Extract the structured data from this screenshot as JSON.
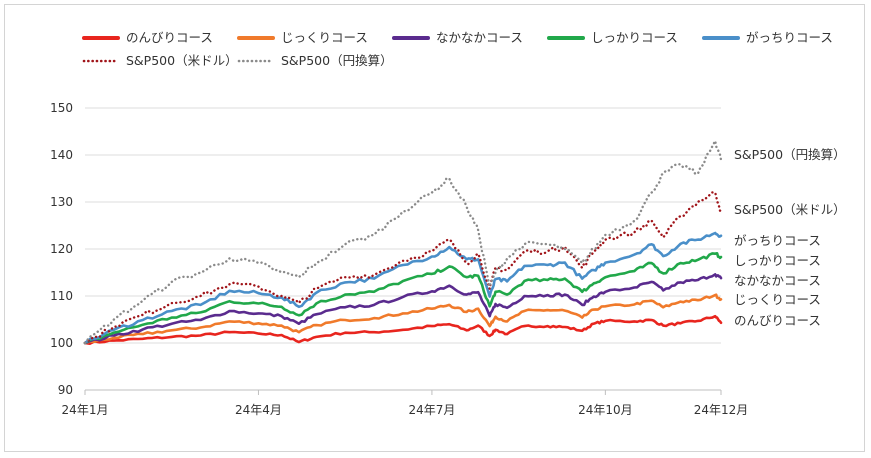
{
  "chart_data": {
    "type": "line",
    "title": "",
    "xlabel": "",
    "ylabel": "",
    "ylim": [
      90,
      150
    ],
    "yticks": [
      90,
      100,
      110,
      120,
      130,
      140,
      150
    ],
    "x_tick_labels": [
      "24年1月",
      "24年4月",
      "24年7月",
      "24年10月",
      "24年12月"
    ],
    "x_tick_months": [
      1,
      4,
      7,
      10,
      12
    ],
    "xlim_months": [
      1,
      12
    ],
    "grid": "horizontal",
    "legend_position": "top",
    "series": [
      {
        "name": "のんびりコース",
        "color": "#e8251e",
        "style": "solid",
        "end_label": "のんびりコース",
        "points": [
          [
            1,
            100
          ],
          [
            1.5,
            100.5
          ],
          [
            2,
            100.9
          ],
          [
            2.5,
            101.3
          ],
          [
            3,
            101.6
          ],
          [
            3.5,
            102.3
          ],
          [
            4,
            102
          ],
          [
            4.4,
            101.7
          ],
          [
            4.7,
            100.2
          ],
          [
            5,
            101.3
          ],
          [
            5.5,
            102.2
          ],
          [
            6,
            102.3
          ],
          [
            6.5,
            102.8
          ],
          [
            7,
            103.6
          ],
          [
            7.3,
            104
          ],
          [
            7.6,
            102.7
          ],
          [
            7.8,
            103.7
          ],
          [
            8.0,
            101.5
          ],
          [
            8.1,
            102.8
          ],
          [
            8.3,
            101.9
          ],
          [
            8.6,
            103.6
          ],
          [
            9,
            103.6
          ],
          [
            9.3,
            103.4
          ],
          [
            9.6,
            102.6
          ],
          [
            9.8,
            104.1
          ],
          [
            10,
            104.7
          ],
          [
            10.5,
            104.6
          ],
          [
            10.8,
            104.9
          ],
          [
            11,
            103.7
          ],
          [
            11.3,
            104.2
          ],
          [
            11.6,
            104.7
          ],
          [
            11.9,
            105.7
          ],
          [
            12,
            104.3
          ]
        ]
      },
      {
        "name": "じっくりコース",
        "color": "#f07a2b",
        "style": "solid",
        "end_label": "じっくりコース",
        "points": [
          [
            1,
            100
          ],
          [
            1.5,
            101.1
          ],
          [
            2,
            101.9
          ],
          [
            2.5,
            102.7
          ],
          [
            3,
            103.3
          ],
          [
            3.5,
            104.6
          ],
          [
            4,
            104.2
          ],
          [
            4.4,
            103.7
          ],
          [
            4.7,
            102.3
          ],
          [
            5,
            103.8
          ],
          [
            5.5,
            104.9
          ],
          [
            6,
            105.3
          ],
          [
            6.5,
            106.3
          ],
          [
            7,
            107.3
          ],
          [
            7.3,
            108.1
          ],
          [
            7.6,
            106.6
          ],
          [
            7.8,
            107.3
          ],
          [
            8.0,
            103.6
          ],
          [
            8.1,
            105.6
          ],
          [
            8.3,
            104.6
          ],
          [
            8.6,
            106.8
          ],
          [
            9,
            107
          ],
          [
            9.3,
            106.9
          ],
          [
            9.6,
            105.4
          ],
          [
            9.8,
            107.1
          ],
          [
            10,
            107.8
          ],
          [
            10.5,
            108.2
          ],
          [
            10.8,
            109
          ],
          [
            11,
            107.6
          ],
          [
            11.3,
            108.8
          ],
          [
            11.6,
            109.1
          ],
          [
            11.9,
            110.2
          ],
          [
            12,
            109.3
          ]
        ]
      },
      {
        "name": "なかなかコース",
        "color": "#5a2b8e",
        "style": "solid",
        "end_label": "なかなかコース",
        "points": [
          [
            1,
            100
          ],
          [
            1.5,
            101.6
          ],
          [
            2,
            102.9
          ],
          [
            2.5,
            104.1
          ],
          [
            3,
            104.9
          ],
          [
            3.5,
            106.8
          ],
          [
            4,
            106.3
          ],
          [
            4.4,
            105.7
          ],
          [
            4.7,
            104.1
          ],
          [
            5,
            106.1
          ],
          [
            5.5,
            107.6
          ],
          [
            6,
            108.1
          ],
          [
            6.5,
            109.8
          ],
          [
            7,
            111
          ],
          [
            7.3,
            112.2
          ],
          [
            7.6,
            110.3
          ],
          [
            7.8,
            110.8
          ],
          [
            8.0,
            105.7
          ],
          [
            8.1,
            108.3
          ],
          [
            8.3,
            107.5
          ],
          [
            8.6,
            110
          ],
          [
            9,
            110.2
          ],
          [
            9.3,
            110.3
          ],
          [
            9.6,
            108.1
          ],
          [
            9.8,
            109.9
          ],
          [
            10,
            110.9
          ],
          [
            10.5,
            111.8
          ],
          [
            10.8,
            113
          ],
          [
            11,
            111.2
          ],
          [
            11.3,
            112.9
          ],
          [
            11.6,
            113.4
          ],
          [
            11.9,
            114.6
          ],
          [
            12,
            113.8
          ]
        ]
      },
      {
        "name": "しっかりコース",
        "color": "#21a84a",
        "style": "solid",
        "end_label": "しっかりコース",
        "points": [
          [
            1,
            100
          ],
          [
            1.5,
            102.2
          ],
          [
            2,
            103.9
          ],
          [
            2.5,
            105.4
          ],
          [
            3,
            106.5
          ],
          [
            3.5,
            108.9
          ],
          [
            4,
            108.4
          ],
          [
            4.4,
            107.7
          ],
          [
            4.7,
            105.9
          ],
          [
            5,
            108.4
          ],
          [
            5.5,
            110.3
          ],
          [
            6,
            110.9
          ],
          [
            6.5,
            113.2
          ],
          [
            7,
            114.7
          ],
          [
            7.3,
            116.3
          ],
          [
            7.6,
            114
          ],
          [
            7.8,
            114.3
          ],
          [
            8.0,
            107.8
          ],
          [
            8.1,
            110.9
          ],
          [
            8.3,
            110.3
          ],
          [
            8.6,
            113.2
          ],
          [
            9,
            113.4
          ],
          [
            9.3,
            113.7
          ],
          [
            9.6,
            110.9
          ],
          [
            9.8,
            112.7
          ],
          [
            10,
            114
          ],
          [
            10.5,
            115.3
          ],
          [
            10.8,
            117
          ],
          [
            11,
            114.8
          ],
          [
            11.3,
            117
          ],
          [
            11.6,
            117.7
          ],
          [
            11.9,
            119
          ],
          [
            12,
            118.3
          ]
        ]
      },
      {
        "name": "がっちりコース",
        "color": "#4a8fc9",
        "style": "solid",
        "end_label": "がっちりコース",
        "points": [
          [
            1,
            100
          ],
          [
            1.5,
            102.8
          ],
          [
            2,
            104.9
          ],
          [
            2.5,
            106.8
          ],
          [
            3,
            108.1
          ],
          [
            3.5,
            111.1
          ],
          [
            4,
            110.6
          ],
          [
            4.4,
            109.7
          ],
          [
            4.7,
            107.7
          ],
          [
            5,
            110.7
          ],
          [
            5.5,
            112.9
          ],
          [
            6,
            113.7
          ],
          [
            6.5,
            116.6
          ],
          [
            7,
            118.4
          ],
          [
            7.3,
            120.4
          ],
          [
            7.6,
            117.8
          ],
          [
            7.8,
            117.8
          ],
          [
            8.0,
            109.9
          ],
          [
            8.1,
            113.6
          ],
          [
            8.3,
            113.1
          ],
          [
            8.6,
            116.4
          ],
          [
            9,
            116.6
          ],
          [
            9.3,
            117.1
          ],
          [
            9.6,
            113.7
          ],
          [
            9.8,
            115.5
          ],
          [
            10,
            117.1
          ],
          [
            10.5,
            118.8
          ],
          [
            10.8,
            121
          ],
          [
            11,
            118.5
          ],
          [
            11.3,
            121.1
          ],
          [
            11.6,
            122
          ],
          [
            11.9,
            123.4
          ],
          [
            12,
            122.8
          ]
        ]
      },
      {
        "name": "S&P500（米ドル）",
        "color": "#a01419",
        "style": "dotted",
        "end_label": "S&P500（米ドル）",
        "points": [
          [
            1,
            100
          ],
          [
            1.5,
            103.5
          ],
          [
            2,
            106
          ],
          [
            2.5,
            108.5
          ],
          [
            3,
            110
          ],
          [
            3.5,
            112.5
          ],
          [
            4,
            112
          ],
          [
            4.4,
            110
          ],
          [
            4.7,
            108.5
          ],
          [
            5,
            111.5
          ],
          [
            5.5,
            114
          ],
          [
            6,
            114.5
          ],
          [
            6.5,
            117.5
          ],
          [
            7,
            119.5
          ],
          [
            7.3,
            122
          ],
          [
            7.6,
            117
          ],
          [
            7.8,
            119
          ],
          [
            8.0,
            111.5
          ],
          [
            8.1,
            116
          ],
          [
            8.3,
            115.5
          ],
          [
            8.6,
            119.5
          ],
          [
            9,
            119.5
          ],
          [
            9.3,
            120.5
          ],
          [
            9.6,
            116
          ],
          [
            9.8,
            119.5
          ],
          [
            10,
            122
          ],
          [
            10.5,
            123.5
          ],
          [
            10.8,
            126
          ],
          [
            11,
            122.5
          ],
          [
            11.3,
            127
          ],
          [
            11.6,
            130
          ],
          [
            11.9,
            132
          ],
          [
            12,
            128
          ]
        ]
      },
      {
        "name": "S&P500（円換算）",
        "color": "#8a8a8a",
        "style": "dotted",
        "end_label": "S&P500（円換算）",
        "points": [
          [
            1,
            100
          ],
          [
            1.5,
            105
          ],
          [
            2,
            109
          ],
          [
            2.5,
            113
          ],
          [
            3,
            115
          ],
          [
            3.5,
            118
          ],
          [
            4,
            117
          ],
          [
            4.4,
            115
          ],
          [
            4.7,
            114
          ],
          [
            5,
            117
          ],
          [
            5.5,
            121
          ],
          [
            6,
            123
          ],
          [
            6.5,
            128
          ],
          [
            7,
            132
          ],
          [
            7.3,
            135
          ],
          [
            7.6,
            129
          ],
          [
            7.8,
            124
          ],
          [
            8.0,
            112
          ],
          [
            8.1,
            115
          ],
          [
            8.3,
            118
          ],
          [
            8.6,
            121
          ],
          [
            9,
            121
          ],
          [
            9.3,
            120
          ],
          [
            9.6,
            117
          ],
          [
            9.8,
            120
          ],
          [
            10,
            123
          ],
          [
            10.5,
            126
          ],
          [
            10.8,
            132
          ],
          [
            11,
            136
          ],
          [
            11.3,
            138
          ],
          [
            11.6,
            136
          ],
          [
            11.9,
            143
          ],
          [
            12,
            139
          ]
        ]
      }
    ]
  }
}
